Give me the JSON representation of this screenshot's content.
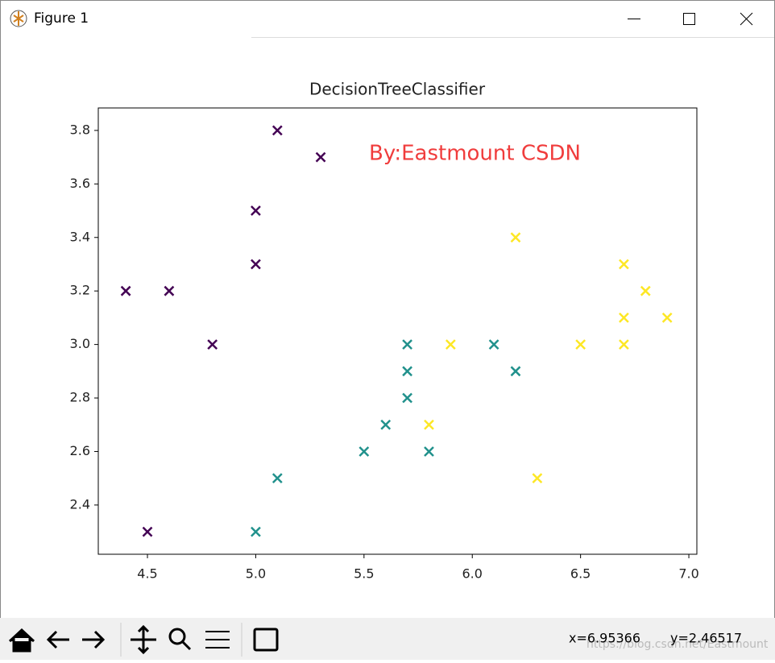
{
  "window": {
    "title": "Figure 1",
    "status_x": "x=6.95366",
    "status_y": "y=2.46517",
    "watermark": "https://blog.csdn.net/Eastmount"
  },
  "chart_data": {
    "type": "scatter",
    "title": "DecisionTreeClassifier",
    "annotation": "By:Eastmount CSDN",
    "marker": "x",
    "xlim": [
      4.273,
      7.037
    ],
    "ylim": [
      2.216,
      3.884
    ],
    "xticks": [
      4.5,
      {
        "value": 5,
        "label": "5.0"
      },
      5.5,
      {
        "value": 6,
        "label": "6.0"
      },
      6.5,
      {
        "value": 7,
        "label": "7.0"
      }
    ],
    "yticks": [
      2.4,
      2.6,
      2.8,
      {
        "value": 3,
        "label": "3.0"
      },
      3.2,
      3.4,
      3.6,
      3.8
    ],
    "series": [
      {
        "color": "#440154",
        "x": [
          5.1,
          5.3,
          5.0,
          5.0,
          4.4,
          4.6,
          4.8,
          4.5
        ],
        "values": [
          3.8,
          3.7,
          3.5,
          3.3,
          3.2,
          3.2,
          3.0,
          2.3
        ]
      },
      {
        "color": "#21918c",
        "x": [
          5.7,
          5.7,
          5.7,
          5.6,
          5.5,
          5.8,
          5.1,
          5.0,
          6.1,
          6.2
        ],
        "values": [
          3.0,
          2.9,
          2.8,
          2.7,
          2.6,
          2.6,
          2.5,
          2.3,
          3.0,
          2.9
        ]
      },
      {
        "color": "#fde725",
        "x": [
          6.2,
          6.7,
          6.8,
          6.7,
          6.9,
          5.9,
          6.5,
          6.7,
          5.8,
          6.3
        ],
        "values": [
          3.4,
          3.3,
          3.2,
          3.1,
          3.1,
          3.0,
          3.0,
          3.0,
          2.7,
          2.5
        ]
      }
    ]
  }
}
